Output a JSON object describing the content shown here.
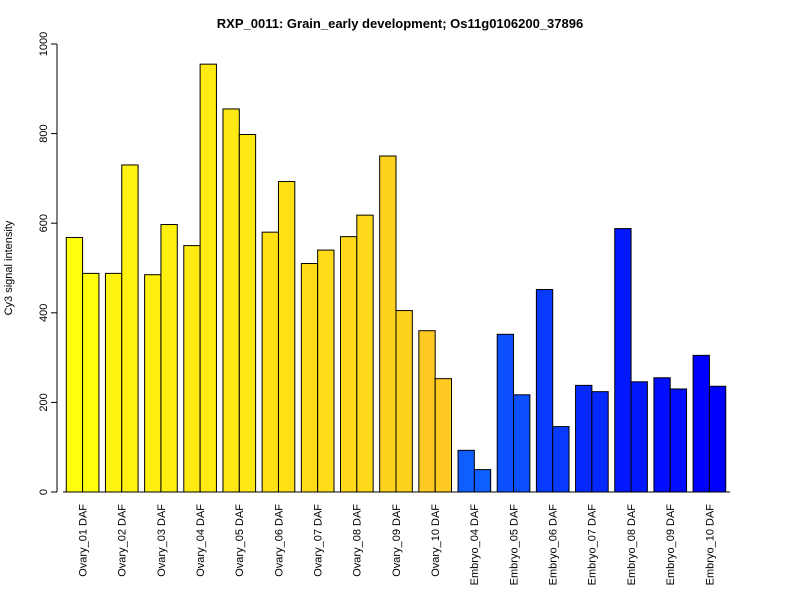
{
  "chart_data": {
    "type": "bar",
    "title": "RXP_0011: Grain_early development; Os11g0106200_37896",
    "xlabel": "",
    "ylabel": "Cy3 signal intensity",
    "ylim": [
      0,
      1000
    ],
    "yticks": [
      0,
      200,
      400,
      600,
      800,
      1000
    ],
    "yticks_labels": [
      "0",
      "200",
      "400",
      "600",
      "800",
      "1000"
    ],
    "grid": false,
    "legend": "none",
    "categories": [
      "Ovary_01 DAF",
      "Ovary_02 DAF",
      "Ovary_03 DAF",
      "Ovary_04 DAF",
      "Ovary_05 DAF",
      "Ovary_06 DAF",
      "Ovary_07 DAF",
      "Ovary_08 DAF",
      "Ovary_09 DAF",
      "Ovary_10 DAF",
      "Embryo_04 DAF",
      "Embryo_05 DAF",
      "Embryo_06 DAF",
      "Embryo_07 DAF",
      "Embryo_08 DAF",
      "Embryo_09 DAF",
      "Embryo_10 DAF"
    ],
    "series": [
      {
        "values": [
          568,
          488,
          485,
          550,
          855,
          580,
          510,
          570,
          750,
          360,
          93,
          352,
          452,
          238,
          588,
          255,
          305
        ]
      },
      {
        "values": [
          488,
          730,
          597,
          955,
          798,
          693,
          540,
          618,
          405,
          253,
          50,
          217,
          146,
          224,
          246,
          230,
          236
        ]
      }
    ],
    "bar_colors": [
      "#FFFF0B",
      "#FFF30F",
      "#FFF00F",
      "#FFEB12",
      "#FFE813",
      "#FFE116",
      "#FFDC18",
      "#FFD91A",
      "#FFD31D",
      "#FFCA22",
      "#0F5EFF",
      "#0C4FFF",
      "#093BFF",
      "#0629FF",
      "#0418FF",
      "#020DFF",
      "#0000FF"
    ]
  }
}
